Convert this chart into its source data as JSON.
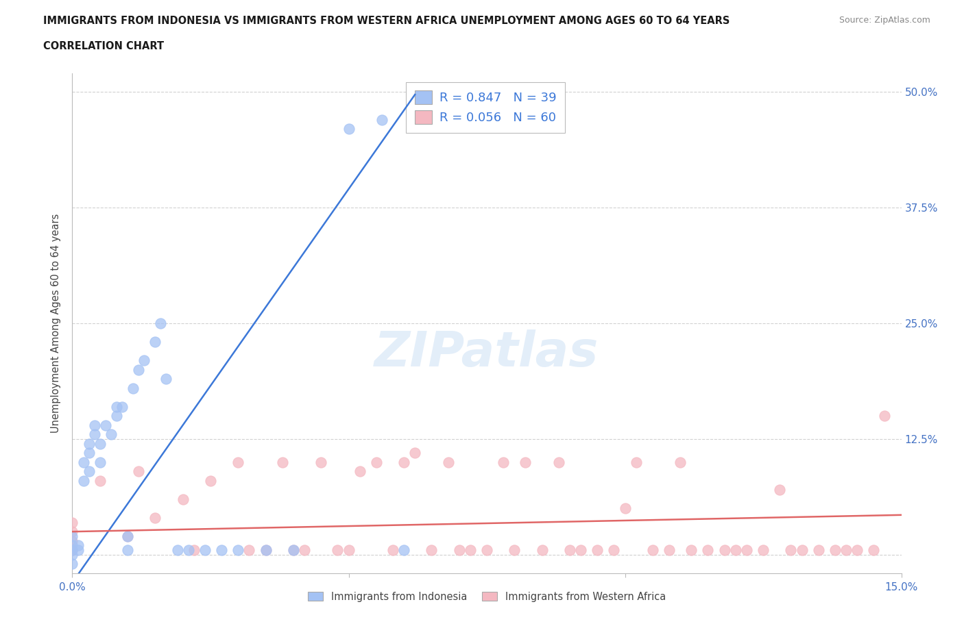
{
  "title_line1": "IMMIGRANTS FROM INDONESIA VS IMMIGRANTS FROM WESTERN AFRICA UNEMPLOYMENT AMONG AGES 60 TO 64 YEARS",
  "title_line2": "CORRELATION CHART",
  "source": "Source: ZipAtlas.com",
  "ylabel": "Unemployment Among Ages 60 to 64 years",
  "xlim": [
    0,
    0.15
  ],
  "ylim": [
    -0.02,
    0.52
  ],
  "R_indonesia": 0.847,
  "N_indonesia": 39,
  "R_western_africa": 0.056,
  "N_western_africa": 60,
  "color_indonesia": "#a4c2f4",
  "color_western_africa": "#f4b8c1",
  "color_line_indonesia": "#3c78d8",
  "color_line_western_africa": "#e06666",
  "indo_slope": 8.5,
  "indo_intercept": -0.03,
  "waf_slope": 0.12,
  "waf_intercept": 0.025,
  "indo_x": [
    0.0,
    0.0,
    0.0,
    0.0,
    0.0,
    0.001,
    0.001,
    0.002,
    0.002,
    0.003,
    0.003,
    0.003,
    0.004,
    0.004,
    0.005,
    0.005,
    0.006,
    0.007,
    0.008,
    0.008,
    0.009,
    0.01,
    0.01,
    0.011,
    0.012,
    0.013,
    0.015,
    0.016,
    0.017,
    0.019,
    0.021,
    0.024,
    0.027,
    0.03,
    0.035,
    0.04,
    0.05,
    0.056,
    0.06
  ],
  "indo_y": [
    0.0,
    0.005,
    0.01,
    0.02,
    -0.01,
    0.005,
    0.01,
    0.08,
    0.1,
    0.09,
    0.11,
    0.12,
    0.13,
    0.14,
    0.1,
    0.12,
    0.14,
    0.13,
    0.15,
    0.16,
    0.16,
    0.005,
    0.02,
    0.18,
    0.2,
    0.21,
    0.23,
    0.25,
    0.19,
    0.005,
    0.005,
    0.005,
    0.005,
    0.005,
    0.005,
    0.005,
    0.46,
    0.47,
    0.005
  ],
  "waf_x": [
    0.0,
    0.0,
    0.0,
    0.0,
    0.0,
    0.005,
    0.01,
    0.012,
    0.015,
    0.02,
    0.022,
    0.025,
    0.03,
    0.032,
    0.035,
    0.038,
    0.04,
    0.042,
    0.045,
    0.048,
    0.05,
    0.052,
    0.055,
    0.058,
    0.06,
    0.062,
    0.065,
    0.068,
    0.07,
    0.072,
    0.075,
    0.078,
    0.08,
    0.082,
    0.085,
    0.088,
    0.09,
    0.092,
    0.095,
    0.098,
    0.1,
    0.102,
    0.105,
    0.108,
    0.11,
    0.112,
    0.115,
    0.118,
    0.12,
    0.122,
    0.125,
    0.128,
    0.13,
    0.132,
    0.135,
    0.138,
    0.14,
    0.142,
    0.145,
    0.147
  ],
  "waf_y": [
    0.005,
    0.015,
    0.025,
    0.035,
    0.005,
    0.08,
    0.02,
    0.09,
    0.04,
    0.06,
    0.005,
    0.08,
    0.1,
    0.005,
    0.005,
    0.1,
    0.005,
    0.005,
    0.1,
    0.005,
    0.005,
    0.09,
    0.1,
    0.005,
    0.1,
    0.11,
    0.005,
    0.1,
    0.005,
    0.005,
    0.005,
    0.1,
    0.005,
    0.1,
    0.005,
    0.1,
    0.005,
    0.005,
    0.005,
    0.005,
    0.05,
    0.1,
    0.005,
    0.005,
    0.1,
    0.005,
    0.005,
    0.005,
    0.005,
    0.005,
    0.005,
    0.07,
    0.005,
    0.005,
    0.005,
    0.005,
    0.005,
    0.005,
    0.005,
    0.15
  ]
}
